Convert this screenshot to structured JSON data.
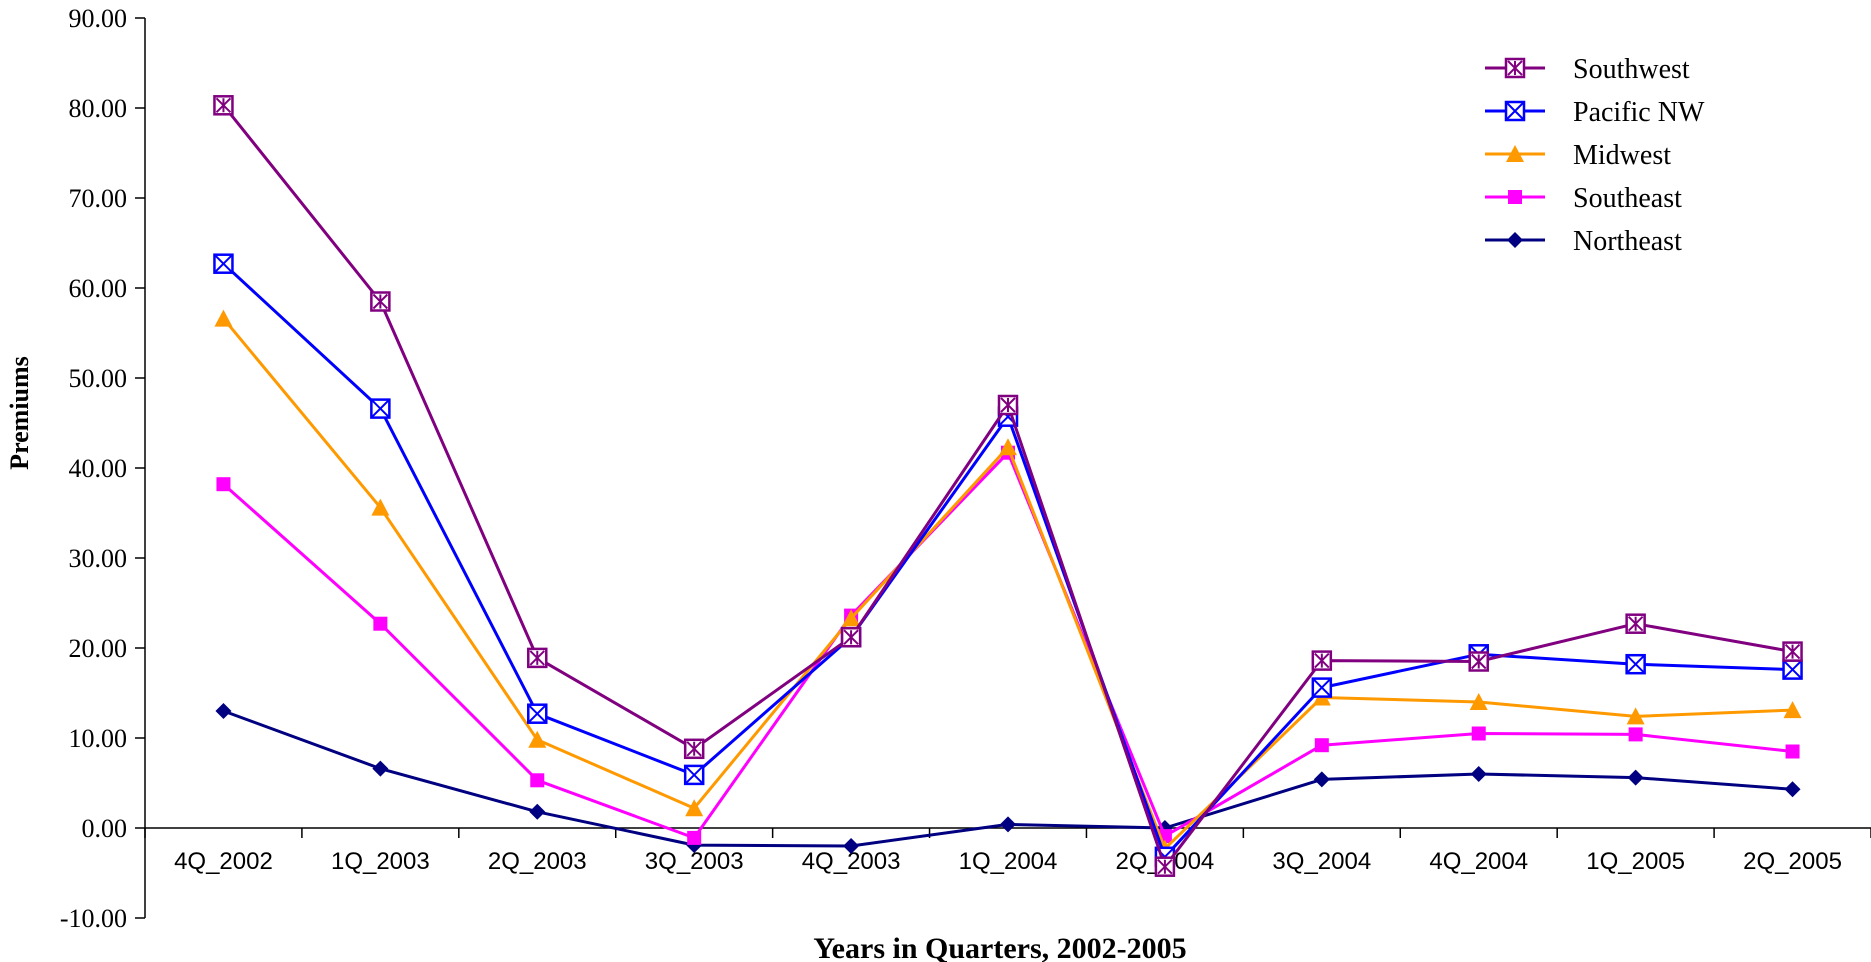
{
  "chart_data": {
    "type": "line",
    "title": "",
    "xlabel": "Years in Quarters, 2002-2005",
    "ylabel": "Premiums",
    "ylim": [
      -10,
      90
    ],
    "y_ticks": [
      "-10.00",
      "0.00",
      "10.00",
      "20.00",
      "30.00",
      "40.00",
      "50.00",
      "60.00",
      "70.00",
      "80.00",
      "90.00"
    ],
    "categories": [
      "4Q_2002",
      "1Q_2003",
      "2Q_2003",
      "3Q_2003",
      "4Q_2003",
      "1Q_2004",
      "2Q_2004",
      "3Q_2004",
      "4Q_2004",
      "1Q_2005",
      "2Q_2005"
    ],
    "legend_position": "top-right",
    "grid": false,
    "series": [
      {
        "name": "Southwest",
        "color": "#800080",
        "marker": "square-asterisk",
        "values": [
          80.3,
          58.5,
          18.9,
          8.8,
          21.2,
          47.0,
          -4.3,
          18.6,
          18.5,
          22.7,
          19.6
        ]
      },
      {
        "name": "Pacific NW",
        "color": "#0000FF",
        "marker": "square-x",
        "values": [
          62.7,
          46.6,
          12.7,
          5.9,
          21.2,
          45.7,
          -3.2,
          15.6,
          19.3,
          18.2,
          17.6
        ]
      },
      {
        "name": "Midwest",
        "color": "#FF9900",
        "marker": "triangle",
        "values": [
          56.6,
          35.6,
          9.8,
          2.2,
          23.3,
          42.3,
          -2.3,
          14.5,
          14.0,
          12.4,
          13.1
        ]
      },
      {
        "name": "Southeast",
        "color": "#FF00FF",
        "marker": "square",
        "values": [
          38.2,
          22.7,
          5.3,
          -1.1,
          23.6,
          41.7,
          -0.9,
          9.2,
          10.5,
          10.4,
          8.5
        ]
      },
      {
        "name": "Northeast",
        "color": "#000080",
        "marker": "diamond",
        "values": [
          13.0,
          6.6,
          1.8,
          -1.9,
          -2.0,
          0.4,
          0.0,
          5.4,
          6.0,
          5.6,
          4.3
        ]
      }
    ]
  }
}
